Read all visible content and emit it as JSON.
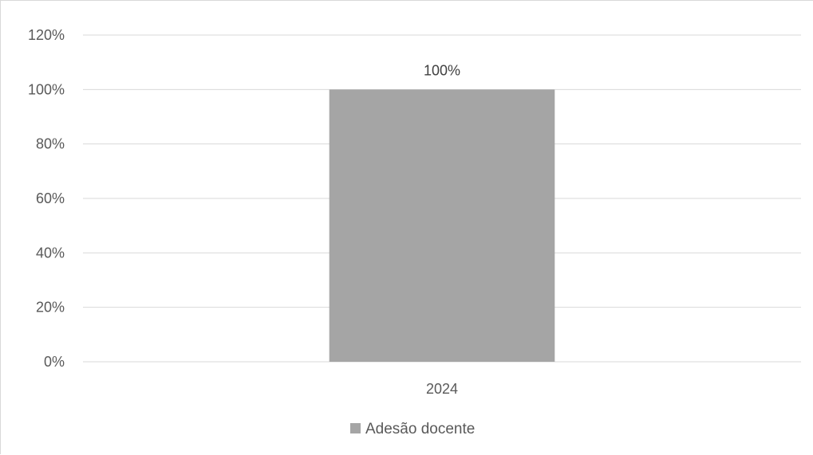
{
  "chart_data": {
    "type": "bar",
    "categories": [
      "2024"
    ],
    "series": [
      {
        "name": "Adesão docente",
        "values": [
          100
        ],
        "value_labels": [
          "100%"
        ],
        "color": "#a5a5a5"
      }
    ],
    "y_ticks": [
      0,
      20,
      40,
      60,
      80,
      100,
      120
    ],
    "y_tick_labels": [
      "0%",
      "20%",
      "40%",
      "60%",
      "80%",
      "100%",
      "120%"
    ],
    "ylim": [
      0,
      120
    ],
    "grid": true,
    "legend_position": "bottom",
    "gridline_color": "#d9d9d9"
  }
}
